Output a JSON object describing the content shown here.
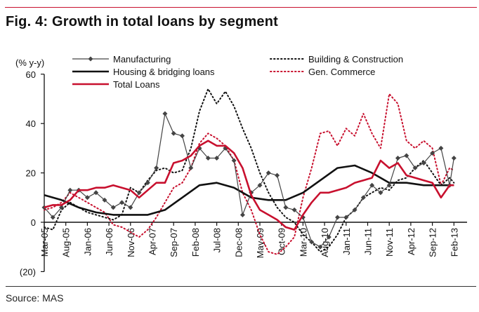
{
  "header": {
    "title": "Fig. 4:  Growth in total loans by segment"
  },
  "footer": {
    "source": "Source: MAS"
  },
  "colors": {
    "accent": "#c8102e",
    "black": "#111111",
    "gray": "#444444"
  },
  "chart_data": {
    "type": "line",
    "title": "Fig. 4:  Growth in total loans by segment",
    "ylabel": "(% y-y)",
    "xlabel": "",
    "ylim": [
      -20,
      60
    ],
    "yticks": [
      60,
      40,
      20,
      0,
      -20
    ],
    "ytick_labels": [
      "60",
      "40",
      "20",
      "0",
      "(20)"
    ],
    "xtick_labels": [
      "Mar-05",
      "Aug-05",
      "Jan-06",
      "Jun-06",
      "Nov-06",
      "Apr-07",
      "Sep-07",
      "Feb-08",
      "Jul-08",
      "Dec-08",
      "May-09",
      "Oct-09",
      "Mar-10",
      "Aug-10",
      "Jan-11",
      "Jun-11",
      "Nov-11",
      "Apr-12",
      "Sep-12",
      "Feb-13"
    ],
    "x_unit": "months since Mar-05",
    "legend": "top",
    "series": [
      {
        "name": "Manufacturing",
        "style": "thin-diamond",
        "color": "#444444",
        "x": [
          0,
          2,
          4,
          6,
          8,
          10,
          12,
          14,
          16,
          18,
          20,
          22,
          24,
          26,
          28,
          30,
          32,
          34,
          36,
          38,
          40,
          42,
          44,
          46,
          48,
          50,
          52,
          54,
          56,
          58,
          60,
          62,
          64,
          66,
          68,
          70,
          72,
          74,
          76,
          78,
          80,
          82,
          84,
          86,
          88,
          90,
          92,
          94,
          95
        ],
        "y": [
          6,
          2,
          6,
          13,
          13,
          10,
          12,
          9,
          6,
          8,
          6,
          12,
          16,
          22,
          44,
          36,
          35,
          22,
          30,
          26,
          26,
          30,
          25,
          3,
          12,
          15,
          20,
          19,
          6,
          5,
          2,
          -8,
          -10,
          -6,
          2,
          2,
          5,
          10,
          15,
          12,
          15,
          26,
          27,
          22,
          24,
          28,
          30,
          15,
          26
        ]
      },
      {
        "name": "Housing & bridging loans",
        "style": "thick-solid",
        "color": "#111111",
        "x": [
          0,
          4,
          8,
          12,
          16,
          20,
          24,
          28,
          32,
          36,
          40,
          44,
          48,
          52,
          56,
          60,
          64,
          68,
          72,
          76,
          80,
          84,
          88,
          92,
          95
        ],
        "y": [
          11,
          9,
          6,
          4,
          3,
          3,
          3,
          5,
          10,
          15,
          16,
          14,
          10,
          9,
          9,
          12,
          17,
          22,
          23,
          20,
          16,
          16,
          15,
          15,
          15
        ]
      },
      {
        "name": "Total Loans",
        "style": "thick-solid",
        "color": "#c8102e",
        "x": [
          0,
          2,
          4,
          6,
          8,
          10,
          12,
          14,
          16,
          18,
          20,
          22,
          24,
          26,
          28,
          30,
          32,
          34,
          36,
          38,
          40,
          42,
          44,
          46,
          48,
          50,
          52,
          54,
          56,
          58,
          60,
          62,
          64,
          66,
          68,
          70,
          72,
          74,
          76,
          78,
          80,
          82,
          84,
          86,
          88,
          90,
          92,
          94,
          95
        ],
        "y": [
          6,
          7,
          7,
          9,
          13,
          13,
          14,
          14,
          15,
          14,
          13,
          10,
          13,
          16,
          16,
          24,
          25,
          27,
          31,
          33,
          31,
          31,
          28,
          22,
          11,
          5,
          3,
          1,
          -2,
          -3,
          3,
          8,
          12,
          12,
          13,
          14,
          16,
          17,
          18,
          25,
          22,
          24,
          19,
          18,
          17,
          16,
          10,
          15,
          15
        ]
      },
      {
        "name": "Building & Construction",
        "style": "dotted",
        "color": "#111111",
        "x": [
          0,
          2,
          4,
          6,
          8,
          10,
          12,
          14,
          16,
          18,
          20,
          22,
          24,
          26,
          28,
          30,
          32,
          34,
          36,
          38,
          40,
          42,
          44,
          46,
          48,
          50,
          52,
          54,
          56,
          58,
          60,
          62,
          64,
          66,
          68,
          70,
          72,
          74,
          76,
          78,
          80,
          82,
          84,
          86,
          88,
          90,
          92,
          94,
          95
        ],
        "y": [
          -2,
          -3,
          5,
          8,
          6,
          4,
          3,
          2,
          1,
          3,
          14,
          12,
          17,
          21,
          22,
          20,
          21,
          30,
          45,
          54,
          48,
          53,
          47,
          38,
          30,
          20,
          12,
          6,
          2,
          0,
          -5,
          -8,
          -12,
          -10,
          -5,
          2,
          5,
          10,
          12,
          14,
          13,
          17,
          18,
          22,
          25,
          20,
          15,
          18,
          16
        ]
      },
      {
        "name": "Gen. Commerce",
        "style": "dotted",
        "color": "#c8102e",
        "x": [
          0,
          2,
          4,
          6,
          8,
          10,
          12,
          14,
          16,
          18,
          20,
          22,
          24,
          26,
          28,
          30,
          32,
          34,
          36,
          38,
          40,
          42,
          44,
          46,
          48,
          50,
          52,
          54,
          56,
          58,
          60,
          62,
          64,
          66,
          68,
          70,
          72,
          74,
          76,
          78,
          80,
          82,
          84,
          86,
          88,
          90,
          92,
          94,
          95
        ],
        "y": [
          5,
          6,
          8,
          12,
          10,
          8,
          6,
          4,
          -1,
          -2,
          -4,
          -6,
          -3,
          2,
          8,
          14,
          16,
          22,
          32,
          36,
          34,
          31,
          25,
          12,
          5,
          -5,
          -12,
          -13,
          -10,
          -6,
          10,
          22,
          36,
          37,
          31,
          38,
          35,
          44,
          36,
          30,
          52,
          48,
          33,
          30,
          33,
          30,
          15,
          22,
          21
        ]
      }
    ]
  }
}
